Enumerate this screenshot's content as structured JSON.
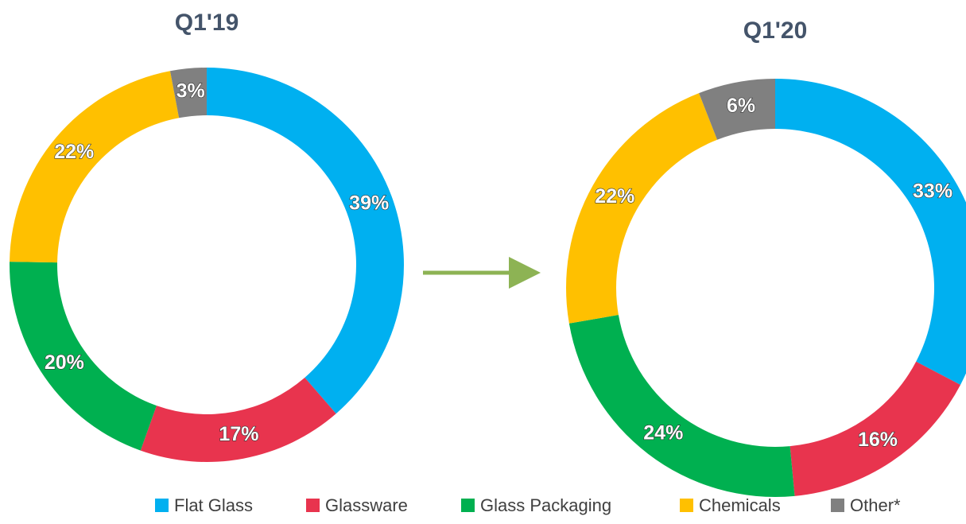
{
  "chart_data": [
    {
      "type": "donut",
      "title": "Q1'19",
      "categories": [
        "Flat Glass",
        "Glassware",
        "Glass Packaging",
        "Chemicals",
        "Other*"
      ],
      "values": [
        39,
        17,
        20,
        22,
        3
      ],
      "value_labels": [
        "39%",
        "17%",
        "20%",
        "22%",
        "3%"
      ],
      "colors": [
        "#00b0f0",
        "#e8344e",
        "#00b050",
        "#ffc000",
        "#808080"
      ]
    },
    {
      "type": "donut",
      "title": "Q1'20",
      "categories": [
        "Flat Glass",
        "Glassware",
        "Glass Packaging",
        "Chemicals",
        "Other*"
      ],
      "values": [
        33,
        16,
        24,
        22,
        6
      ],
      "value_labels": [
        "33%",
        "16%",
        "24%",
        "22%",
        "6%"
      ],
      "colors": [
        "#00b0f0",
        "#e8344e",
        "#00b050",
        "#ffc000",
        "#808080"
      ]
    }
  ]
}
